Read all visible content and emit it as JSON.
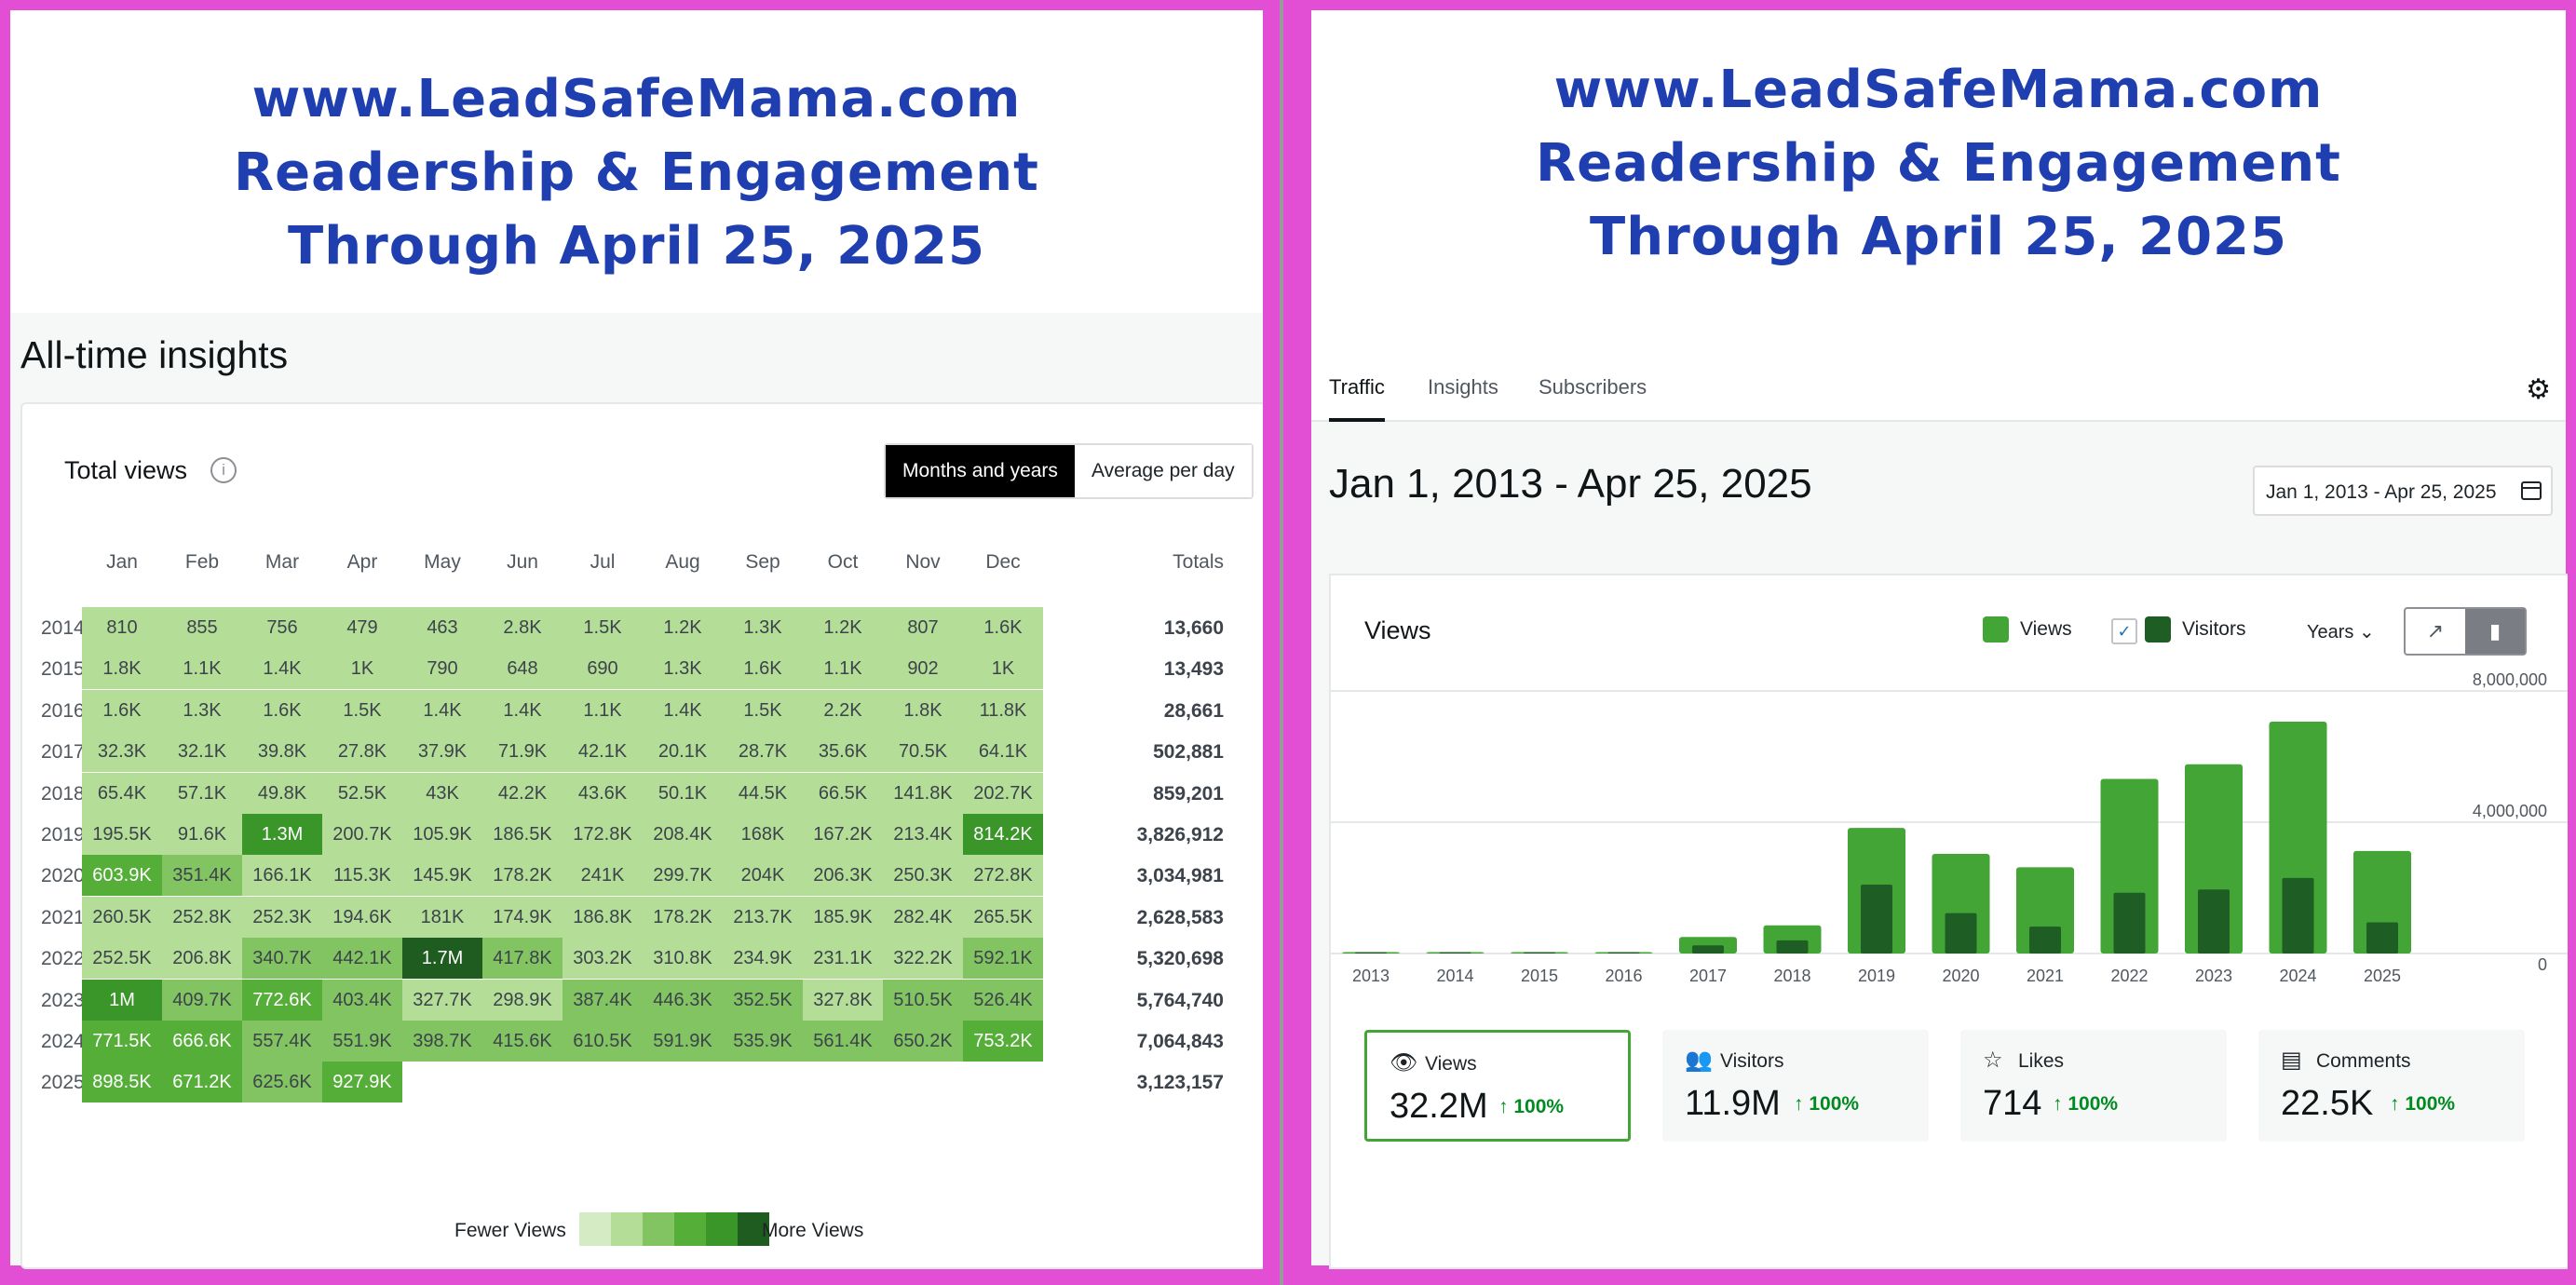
{
  "left": {
    "banner": [
      "www.LeadSafeMama.com",
      "Readership & Engagement",
      "Through April 25, 2025"
    ],
    "section_title": "All-time insights",
    "card_title": "Total views",
    "info_icon": "info-icon",
    "toggle": [
      "Months and years",
      "Average per day"
    ],
    "months": [
      "Jan",
      "Feb",
      "Mar",
      "Apr",
      "May",
      "Jun",
      "Jul",
      "Aug",
      "Sep",
      "Oct",
      "Nov",
      "Dec"
    ],
    "totals_label": "Totals",
    "rows": [
      {
        "year": "2014",
        "cells": [
          "810",
          "855",
          "756",
          "479",
          "463",
          "2.8K",
          "1.5K",
          "1.2K",
          "1.3K",
          "1.2K",
          "807",
          "1.6K"
        ],
        "levels": [
          1,
          1,
          1,
          1,
          1,
          1,
          1,
          1,
          1,
          1,
          1,
          1
        ],
        "total": "13,660"
      },
      {
        "year": "2015",
        "cells": [
          "1.8K",
          "1.1K",
          "1.4K",
          "1K",
          "790",
          "648",
          "690",
          "1.3K",
          "1.6K",
          "1.1K",
          "902",
          "1K"
        ],
        "levels": [
          1,
          1,
          1,
          1,
          1,
          1,
          1,
          1,
          1,
          1,
          1,
          1
        ],
        "total": "13,493"
      },
      {
        "year": "2016",
        "cells": [
          "1.6K",
          "1.3K",
          "1.6K",
          "1.5K",
          "1.4K",
          "1.4K",
          "1.1K",
          "1.4K",
          "1.5K",
          "2.2K",
          "1.8K",
          "11.8K"
        ],
        "levels": [
          1,
          1,
          1,
          1,
          1,
          1,
          1,
          1,
          1,
          1,
          1,
          1
        ],
        "total": "28,661"
      },
      {
        "year": "2017",
        "cells": [
          "32.3K",
          "32.1K",
          "39.8K",
          "27.8K",
          "37.9K",
          "71.9K",
          "42.1K",
          "20.1K",
          "28.7K",
          "35.6K",
          "70.5K",
          "64.1K"
        ],
        "levels": [
          1,
          1,
          1,
          1,
          1,
          1,
          1,
          1,
          1,
          1,
          1,
          1
        ],
        "total": "502,881"
      },
      {
        "year": "2018",
        "cells": [
          "65.4K",
          "57.1K",
          "49.8K",
          "52.5K",
          "43K",
          "42.2K",
          "43.6K",
          "50.1K",
          "44.5K",
          "66.5K",
          "141.8K",
          "202.7K"
        ],
        "levels": [
          1,
          1,
          1,
          1,
          1,
          1,
          1,
          1,
          1,
          1,
          1,
          1
        ],
        "total": "859,201"
      },
      {
        "year": "2019",
        "cells": [
          "195.5K",
          "91.6K",
          "1.3M",
          "200.7K",
          "105.9K",
          "186.5K",
          "172.8K",
          "208.4K",
          "168K",
          "167.2K",
          "213.4K",
          "814.2K"
        ],
        "levels": [
          1,
          1,
          4,
          1,
          1,
          1,
          1,
          1,
          1,
          1,
          1,
          4
        ],
        "total": "3,826,912"
      },
      {
        "year": "2020",
        "cells": [
          "603.9K",
          "351.4K",
          "166.1K",
          "115.3K",
          "145.9K",
          "178.2K",
          "241K",
          "299.7K",
          "204K",
          "206.3K",
          "250.3K",
          "272.8K"
        ],
        "levels": [
          3,
          2,
          1,
          1,
          1,
          1,
          1,
          1,
          1,
          1,
          1,
          1
        ],
        "total": "3,034,981"
      },
      {
        "year": "2021",
        "cells": [
          "260.5K",
          "252.8K",
          "252.3K",
          "194.6K",
          "181K",
          "174.9K",
          "186.8K",
          "178.2K",
          "213.7K",
          "185.9K",
          "282.4K",
          "265.5K"
        ],
        "levels": [
          1,
          1,
          1,
          1,
          1,
          1,
          1,
          1,
          1,
          1,
          1,
          1
        ],
        "total": "2,628,583"
      },
      {
        "year": "2022",
        "cells": [
          "252.5K",
          "206.8K",
          "340.7K",
          "442.1K",
          "1.7M",
          "417.8K",
          "303.2K",
          "310.8K",
          "234.9K",
          "231.1K",
          "322.2K",
          "592.1K"
        ],
        "levels": [
          1,
          1,
          2,
          2,
          5,
          2,
          1,
          1,
          1,
          1,
          1,
          2
        ],
        "total": "5,320,698"
      },
      {
        "year": "2023",
        "cells": [
          "1M",
          "409.7K",
          "772.6K",
          "403.4K",
          "327.7K",
          "298.9K",
          "387.4K",
          "446.3K",
          "352.5K",
          "327.8K",
          "510.5K",
          "526.4K"
        ],
        "levels": [
          4,
          2,
          3,
          2,
          1,
          1,
          2,
          2,
          2,
          1,
          2,
          2
        ],
        "total": "5,764,740"
      },
      {
        "year": "2024",
        "cells": [
          "771.5K",
          "666.6K",
          "557.4K",
          "551.9K",
          "398.7K",
          "415.6K",
          "610.5K",
          "591.9K",
          "535.9K",
          "561.4K",
          "650.2K",
          "753.2K"
        ],
        "levels": [
          3,
          3,
          2,
          2,
          2,
          2,
          2,
          2,
          2,
          2,
          2,
          3
        ],
        "total": "7,064,843"
      },
      {
        "year": "2025",
        "cells": [
          "898.5K",
          "671.2K",
          "625.6K",
          "927.9K"
        ],
        "levels": [
          3,
          3,
          2,
          3
        ],
        "total": "3,123,157"
      }
    ],
    "legend_fewer": "Fewer Views",
    "legend_more": "More Views",
    "level_colors": [
      "#d4ebc4",
      "#b4de98",
      "#82c461",
      "#55ae38",
      "#3a9629",
      "#1f5c1f"
    ]
  },
  "right": {
    "banner": [
      "www.LeadSafeMama.com",
      "Readership & Engagement",
      "Through April 25, 2025"
    ],
    "tabs": [
      "Traffic",
      "Insights",
      "Subscribers"
    ],
    "settings_icon": "gear-icon",
    "range_title": "Jan 1, 2013 - Apr 25, 2025",
    "date_picker": "Jan 1, 2013 - Apr 25, 2025",
    "chart_title": "Views",
    "legend_views": "Views",
    "legend_visitors": "Visitors",
    "period": "Years",
    "colors": {
      "views": "#42a535",
      "visitors": "#1e5e24"
    },
    "stats": [
      {
        "icon": "eye-icon",
        "label": "Views",
        "value": "32.2M",
        "change": "↑ 100%"
      },
      {
        "icon": "people-icon",
        "label": "Visitors",
        "value": "11.9M",
        "change": "↑ 100%"
      },
      {
        "icon": "star-icon",
        "label": "Likes",
        "value": "714",
        "change": "↑ 100%"
      },
      {
        "icon": "comment-icon",
        "label": "Comments",
        "value": "22.5K",
        "change": "↑ 100%"
      }
    ]
  },
  "chart_data": {
    "type": "bar",
    "categories": [
      "2013",
      "2014",
      "2015",
      "2016",
      "2017",
      "2018",
      "2019",
      "2020",
      "2021",
      "2022",
      "2023",
      "2024",
      "2025"
    ],
    "series": [
      {
        "name": "Views",
        "values": [
          200,
          13660,
          13493,
          28661,
          502881,
          859201,
          3826912,
          3034981,
          2628583,
          5320698,
          5764740,
          7064843,
          3123157
        ]
      },
      {
        "name": "Visitors",
        "values": [
          100,
          6000,
          6000,
          12000,
          250000,
          400000,
          2100000,
          1230000,
          820000,
          1850000,
          1950000,
          2300000,
          950000
        ]
      }
    ],
    "y_ticks": [
      "0",
      "4,000,000",
      "8,000,000"
    ],
    "ylim": [
      0,
      8000000
    ],
    "grid": true
  }
}
